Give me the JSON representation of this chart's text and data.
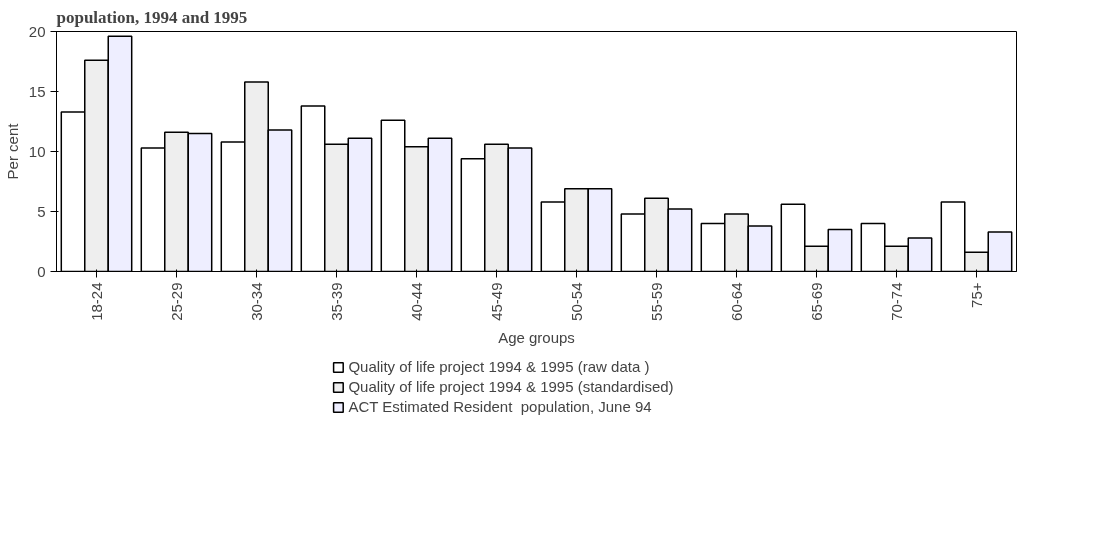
{
  "chart_data": {
    "type": "bar",
    "title": "population, 1994 and 1995",
    "xlabel": "Age groups",
    "ylabel": "Per cent",
    "categories": [
      "18-24",
      "25-29",
      "30-34",
      "35-39",
      "40-44",
      "45-49",
      "50-54",
      "55-59",
      "60-64",
      "65-69",
      "70-74",
      "75+"
    ],
    "series": [
      {
        "name": "Quality of life project 1994 & 1995 (raw data )",
        "color": "#ffffff",
        "values": [
          13.3,
          10.3,
          10.8,
          13.8,
          12.6,
          9.4,
          5.8,
          4.8,
          4.0,
          5.6,
          4.0,
          5.8
        ]
      },
      {
        "name": "Quality of life project 1994 & 1995 (standardised)",
        "color": "#eeeeee",
        "values": [
          17.6,
          11.6,
          15.8,
          10.6,
          10.4,
          10.6,
          6.9,
          6.1,
          4.8,
          2.1,
          2.1,
          1.6
        ]
      },
      {
        "name": "ACT Estimated Resident  population, June 94",
        "color": "#eeeeff",
        "values": [
          19.6,
          11.5,
          11.8,
          11.1,
          11.1,
          10.3,
          6.9,
          5.2,
          3.8,
          3.5,
          2.8,
          3.3
        ]
      }
    ],
    "ylim": [
      0,
      20
    ],
    "yticks": [
      0,
      5,
      10,
      15,
      20
    ],
    "grid": false,
    "legend": "bottom"
  }
}
